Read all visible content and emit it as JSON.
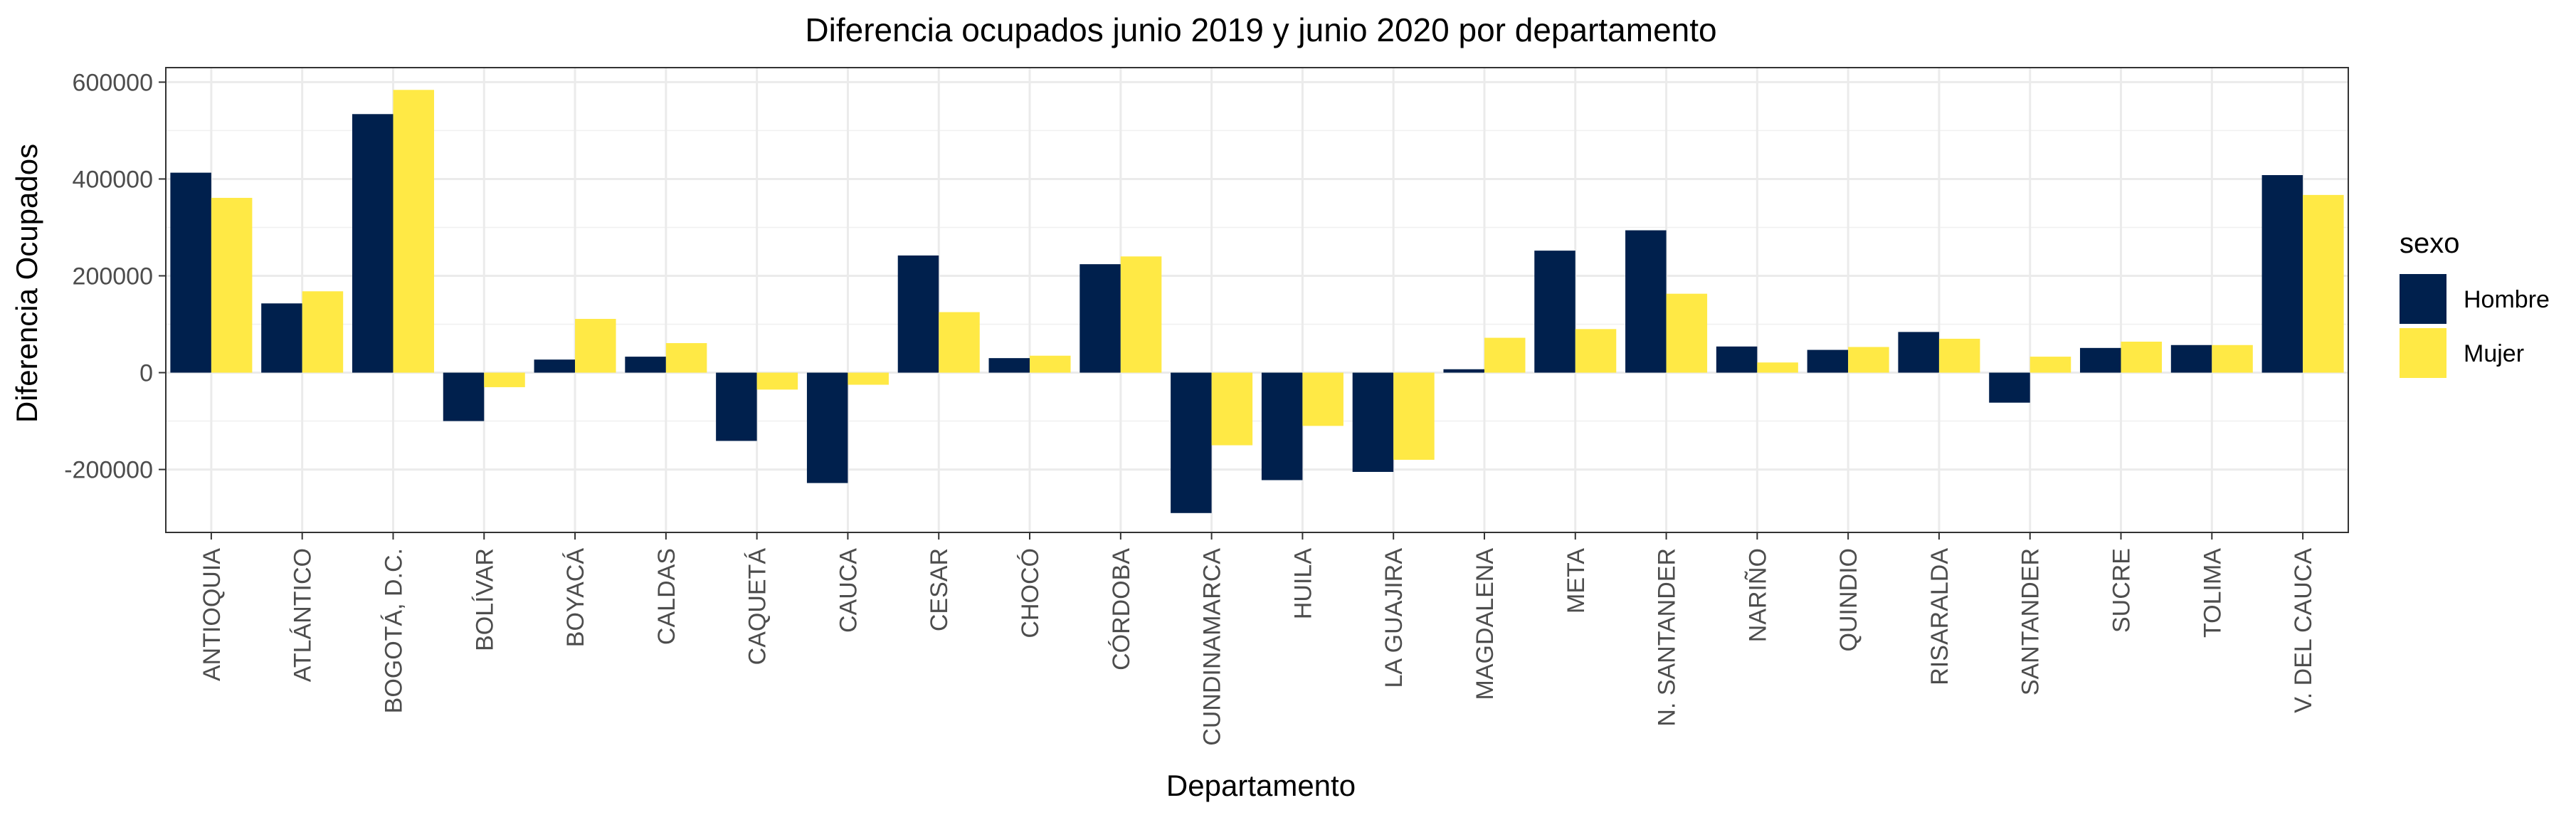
{
  "chart_data": {
    "type": "bar",
    "title": "Diferencia ocupados junio 2019 y junio 2020 por departamento",
    "xlabel": "Departamento",
    "ylabel": "Diferencia Ocupados",
    "ylim": [
      -330000,
      630000
    ],
    "yticks": [
      "600000",
      "400000",
      "200000",
      "0",
      "-200000"
    ],
    "ytick_values": [
      600000,
      400000,
      200000,
      0,
      -200000
    ],
    "grid": true,
    "legend_title": "sexo",
    "legend_position": "right",
    "categories": [
      "ANTIOQUIA",
      "ATLÁNTICO",
      "BOGOTÁ, D.C.",
      "BOLÍVAR",
      "BOYACÁ",
      "CALDAS",
      "CAQUETÁ",
      "CAUCA",
      "CESAR",
      "CHOCÓ",
      "CÓRDOBA",
      "CUNDINAMARCA",
      "HUILA",
      "LA GUAJIRA",
      "MAGDALENA",
      "META",
      "N. SANTANDER",
      "NARIÑO",
      "QUINDIO",
      "RISARALDA",
      "SANTANDER",
      "SUCRE",
      "TOLIMA",
      "V. DEL CAUCA"
    ],
    "series": [
      {
        "name": "Hombre",
        "color": "#00204D",
        "values": [
          413000,
          143000,
          534000,
          -100000,
          27000,
          33000,
          -141000,
          -228000,
          242000,
          30000,
          224000,
          -290000,
          -222000,
          -205000,
          7000,
          252000,
          294000,
          54000,
          47000,
          84000,
          -62000,
          51000,
          57000,
          408000
        ]
      },
      {
        "name": "Mujer",
        "color": "#FFE945",
        "values": [
          361000,
          168000,
          584000,
          -30000,
          111000,
          61000,
          -35000,
          -25000,
          125000,
          35000,
          240000,
          -150000,
          -110000,
          -180000,
          72000,
          90000,
          163000,
          21000,
          53000,
          70000,
          33000,
          64000,
          57000,
          367000
        ]
      }
    ]
  }
}
